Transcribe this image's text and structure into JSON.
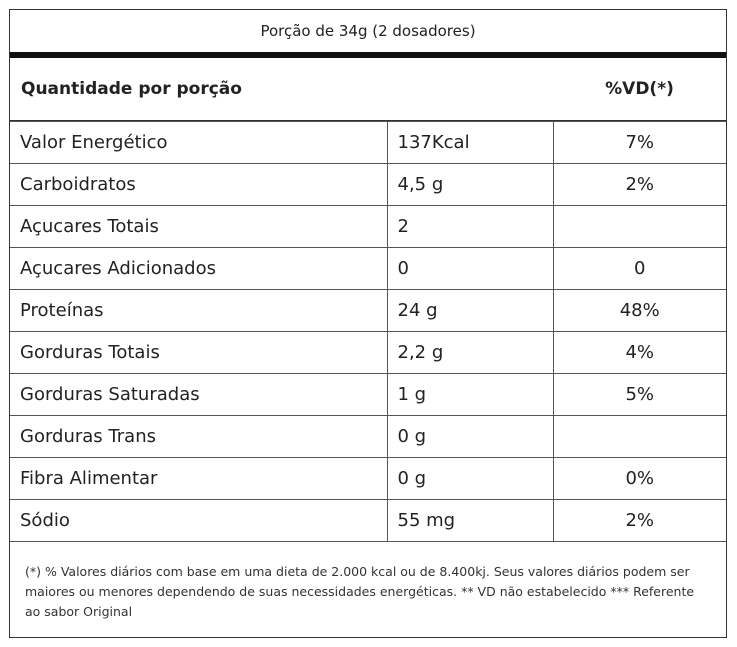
{
  "header": {
    "title": "Porção de 34g (2 dosadores)"
  },
  "table": {
    "columns": [
      "Quantidade por porção",
      "%VD(*)"
    ],
    "rows": [
      [
        "Valor Energético",
        "137Kcal",
        "7%"
      ],
      [
        "Carboidratos",
        "4,5 g",
        "2%"
      ],
      [
        "Açucares Totais",
        "2",
        null
      ],
      [
        "Açucares Adicionados",
        "0",
        "0"
      ],
      [
        "Proteínas",
        "24 g",
        "48%"
      ],
      [
        "Gorduras Totais",
        "2,2 g",
        "4%"
      ],
      [
        "Gorduras Saturadas",
        "1 g",
        "5%"
      ],
      [
        "Gorduras Trans",
        "0 g",
        null
      ],
      [
        "Fibra Alimentar",
        "0 g",
        "0%"
      ],
      [
        "Sódio",
        "55 mg",
        "2%"
      ]
    ]
  },
  "footnote": "(*) % Valores diários com base em uma dieta de 2.000 kcal ou de 8.400kj. Seus valores diários podem ser maiores ou menores dependendo de suas necessidades energéticas. ** VD não estabelecido *** Referente ao sabor Original"
}
